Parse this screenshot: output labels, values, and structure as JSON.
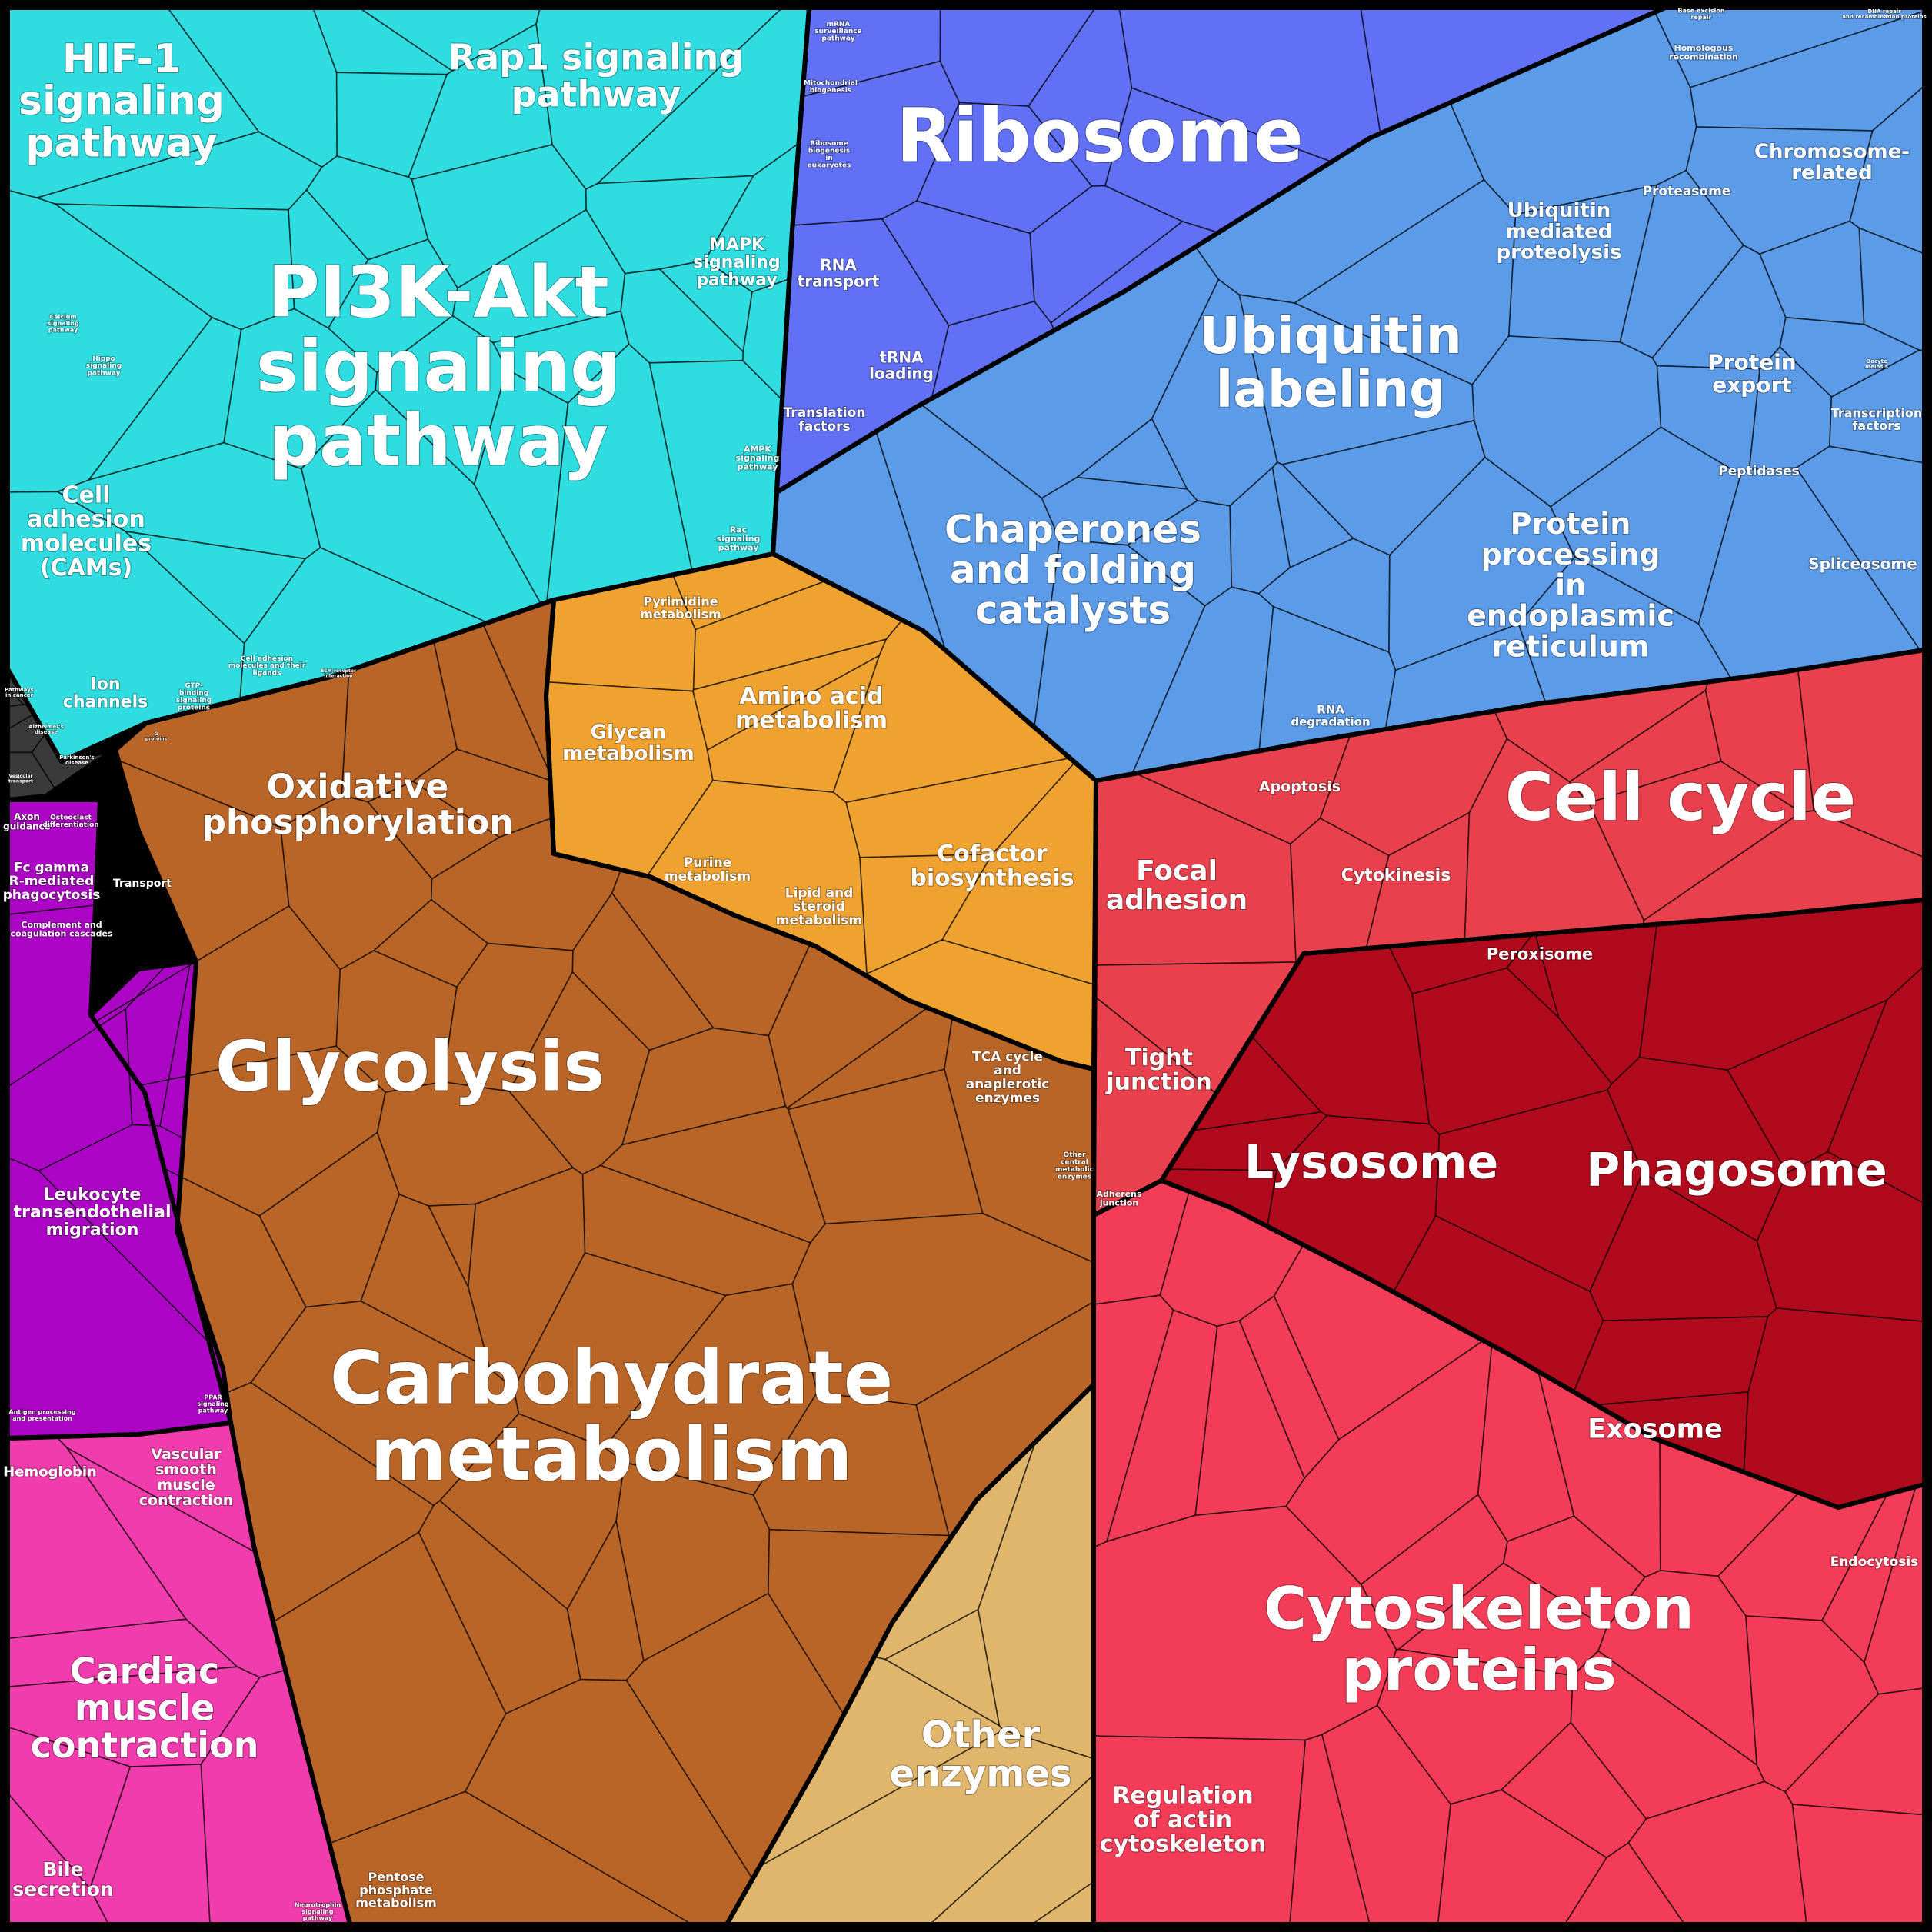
{
  "diagram": {
    "categories": [
      {
        "key": "signaling",
        "color": "#2fdde0",
        "subcolors": [
          "#2ee6ea",
          "#14c4cc",
          "#21d2d6",
          "#4fe9f2",
          "#0db3bd"
        ]
      },
      {
        "key": "ribosome",
        "color": "#6270f5",
        "subcolors": [
          "#6a78f7",
          "#5563ea",
          "#7b87fb",
          "#4755d7",
          "#7d89ff"
        ]
      },
      {
        "key": "ubiquitin",
        "color": "#5b9be8",
        "subcolors": [
          "#6aa5ee",
          "#4f8fe0",
          "#80b6f4",
          "#3f7fd6",
          "#9ac6f7"
        ]
      },
      {
        "key": "metabolism",
        "color": "#f0a230",
        "subcolors": [
          "#f5a93a",
          "#e38f1e",
          "#ffc640",
          "#f7b84a",
          "#d68614"
        ]
      },
      {
        "key": "carb",
        "color": "#b96528",
        "subcolors": [
          "#a5531a",
          "#c77630",
          "#9c4e10",
          "#b36a34",
          "#8f4510"
        ]
      },
      {
        "key": "other_enz",
        "color": "#e0b56c",
        "subcolors": [
          "#e8c17a",
          "#d4a85e",
          "#c99a54",
          "#f0c978"
        ]
      },
      {
        "key": "cell_cycle",
        "color": "#e8404c",
        "subcolors": [
          "#ee4654",
          "#d93040",
          "#f26060",
          "#e02a3e"
        ]
      },
      {
        "key": "lysosome",
        "color": "#b00a1c",
        "subcolors": [
          "#a40012",
          "#c21428",
          "#990010",
          "#b8162a"
        ]
      },
      {
        "key": "cytoskeleton",
        "color": "#f23c58",
        "subcolors": [
          "#f53a58",
          "#e42d4d",
          "#f85674",
          "#d62846"
        ]
      },
      {
        "key": "immune",
        "color": "#ad05c5",
        "subcolors": [
          "#b20ecb",
          "#9f00b8",
          "#c21edb"
        ]
      },
      {
        "key": "cardiac",
        "color": "#f03cac",
        "subcolors": [
          "#f5449e",
          "#e8339c",
          "#ff5bbd",
          "#d42c90"
        ]
      },
      {
        "key": "disease",
        "color": "#3a3a3a",
        "subcolors": [
          "#2d2d2d",
          "#444444",
          "#333333"
        ]
      }
    ],
    "labels": [
      {
        "name": "hif1",
        "lines": [
          "HIF-1",
          "signaling",
          "pathway"
        ]
      },
      {
        "name": "rap1",
        "lines": [
          "Rap1 signaling",
          "pathway"
        ]
      },
      {
        "name": "pi3k",
        "lines": [
          "PI3K-Akt",
          "signaling",
          "pathway"
        ]
      },
      {
        "name": "mapk",
        "lines": [
          "MAPK",
          "signaling",
          "pathway"
        ]
      },
      {
        "name": "cams",
        "lines": [
          "Cell",
          "adhesion",
          "molecules",
          "(CAMs)"
        ]
      },
      {
        "name": "ion-channels",
        "lines": [
          "Ion",
          "channels"
        ]
      },
      {
        "name": "ampk",
        "lines": [
          "AMPK",
          "signaling",
          "pathway"
        ]
      },
      {
        "name": "rac",
        "lines": [
          "Rac",
          "signaling",
          "pathway"
        ]
      },
      {
        "name": "cell-adhesion-ligands",
        "lines": [
          "Cell adhesion",
          "molecules and their",
          "ligands"
        ]
      },
      {
        "name": "gtp-binding",
        "lines": [
          "GTP-",
          "binding",
          "signaling",
          "proteins"
        ]
      },
      {
        "name": "hippo",
        "lines": [
          "Hippo",
          "signaling",
          "pathway"
        ]
      },
      {
        "name": "calcium",
        "lines": [
          "Calcium",
          "signaling",
          "pathway"
        ]
      },
      {
        "name": "ribosome",
        "lines": [
          "Ribosome"
        ]
      },
      {
        "name": "mrna-surveillance",
        "lines": [
          "mRNA",
          "surveillance",
          "pathway"
        ]
      },
      {
        "name": "mito-biogenesis",
        "lines": [
          "Mitochondrial",
          "biogenesis"
        ]
      },
      {
        "name": "ribosome-biogenesis",
        "lines": [
          "Ribosome",
          "biogenesis",
          "in",
          "eukaryotes"
        ]
      },
      {
        "name": "rna-transport",
        "lines": [
          "RNA",
          "transport"
        ]
      },
      {
        "name": "trna-loading",
        "lines": [
          "tRNA",
          "loading"
        ]
      },
      {
        "name": "translation-factors",
        "lines": [
          "Translation",
          "factors"
        ]
      },
      {
        "name": "ubiquitin-labeling",
        "lines": [
          "Ubiquitin",
          "labeling"
        ]
      },
      {
        "name": "ubiquitin-proteolysis",
        "lines": [
          "Ubiquitin",
          "mediated",
          "proteolysis"
        ]
      },
      {
        "name": "chromosome",
        "lines": [
          "Chromosome-",
          "related"
        ]
      },
      {
        "name": "proteasome",
        "lines": [
          "Proteasome"
        ]
      },
      {
        "name": "protein-export",
        "lines": [
          "Protein",
          "export"
        ]
      },
      {
        "name": "peptidases",
        "lines": [
          "Peptidases"
        ]
      },
      {
        "name": "transcription-factors",
        "lines": [
          "Transcription",
          "factors"
        ]
      },
      {
        "name": "spliceosome",
        "lines": [
          "Spliceosome"
        ]
      },
      {
        "name": "chaperones",
        "lines": [
          "Chaperones",
          "and folding",
          "catalysts"
        ]
      },
      {
        "name": "protein-processing",
        "lines": [
          "Protein",
          "processing",
          "in",
          "endoplasmic",
          "reticulum"
        ]
      },
      {
        "name": "rna-degradation",
        "lines": [
          "RNA",
          "degradation"
        ]
      },
      {
        "name": "base-excision",
        "lines": [
          "Base excision",
          "repair"
        ]
      },
      {
        "name": "dna-replication",
        "lines": [
          "DNA repair",
          "and recombination proteins"
        ]
      },
      {
        "name": "homologous",
        "lines": [
          "Homologous",
          "recombination"
        ]
      },
      {
        "name": "pyrimidine",
        "lines": [
          "Pyrimidine",
          "metabolism"
        ]
      },
      {
        "name": "amino-acid",
        "lines": [
          "Amino acid",
          "metabolism"
        ]
      },
      {
        "name": "glycan",
        "lines": [
          "Glycan",
          "metabolism"
        ]
      },
      {
        "name": "oxphos",
        "lines": [
          "Oxidative",
          "phosphorylation"
        ]
      },
      {
        "name": "cofactor",
        "lines": [
          "Cofactor",
          "biosynthesis"
        ]
      },
      {
        "name": "purine",
        "lines": [
          "Purine",
          "metabolism"
        ]
      },
      {
        "name": "lipid",
        "lines": [
          "Lipid and",
          "steroid",
          "metabolism"
        ]
      },
      {
        "name": "transport",
        "lines": [
          "Transport"
        ]
      },
      {
        "name": "glycolysis",
        "lines": [
          "Glycolysis"
        ]
      },
      {
        "name": "tca",
        "lines": [
          "TCA cycle",
          "and",
          "anaplerotic",
          "enzymes"
        ]
      },
      {
        "name": "other-central",
        "lines": [
          "Other",
          "central",
          "metabolic",
          "enzymes"
        ]
      },
      {
        "name": "carbohydrate",
        "lines": [
          "Carbohydrate",
          "metabolism"
        ]
      },
      {
        "name": "other-enzymes",
        "lines": [
          "Other",
          "enzymes"
        ]
      },
      {
        "name": "pentose",
        "lines": [
          "Pentose",
          "phosphate",
          "metabolism"
        ]
      },
      {
        "name": "cell-cycle",
        "lines": [
          "Cell cycle"
        ]
      },
      {
        "name": "apoptosis",
        "lines": [
          "Apoptosis"
        ]
      },
      {
        "name": "cytokinesis",
        "lines": [
          "Cytokinesis"
        ]
      },
      {
        "name": "focal-adhesion",
        "lines": [
          "Focal",
          "adhesion"
        ]
      },
      {
        "name": "tight-junction",
        "lines": [
          "Tight",
          "junction"
        ]
      },
      {
        "name": "adherens",
        "lines": [
          "Adherens",
          "junction"
        ]
      },
      {
        "name": "peroxisome",
        "lines": [
          "Peroxisome"
        ]
      },
      {
        "name": "lysosome",
        "lines": [
          "Lysosome"
        ]
      },
      {
        "name": "phagosome",
        "lines": [
          "Phagosome"
        ]
      },
      {
        "name": "exosome",
        "lines": [
          "Exosome"
        ]
      },
      {
        "name": "endocytosis",
        "lines": [
          "Endocytosis"
        ]
      },
      {
        "name": "cytoskeleton",
        "lines": [
          "Cytoskeleton",
          "proteins"
        ]
      },
      {
        "name": "actin",
        "lines": [
          "Regulation",
          "of actin",
          "cytoskeleton"
        ]
      },
      {
        "name": "axon",
        "lines": [
          "Axon",
          "guidance"
        ]
      },
      {
        "name": "osteoclast",
        "lines": [
          "Osteoclast",
          "differentiation"
        ]
      },
      {
        "name": "fc-gamma",
        "lines": [
          "Fc gamma",
          "R-mediated",
          "phagocytosis"
        ]
      },
      {
        "name": "complement",
        "lines": [
          "Complement and",
          "coagulation cascades"
        ]
      },
      {
        "name": "leukocyte",
        "lines": [
          "Leukocyte",
          "transendothelial",
          "migration"
        ]
      },
      {
        "name": "antigen",
        "lines": [
          "Antigen processing",
          "and presentation"
        ]
      },
      {
        "name": "ppar",
        "lines": [
          "PPAR",
          "signaling",
          "pathway"
        ]
      },
      {
        "name": "hemoglobin",
        "lines": [
          "Hemoglobin"
        ]
      },
      {
        "name": "vascular",
        "lines": [
          "Vascular",
          "smooth",
          "muscle",
          "contraction"
        ]
      },
      {
        "name": "cardiac",
        "lines": [
          "Cardiac",
          "muscle",
          "contraction"
        ]
      },
      {
        "name": "bile",
        "lines": [
          "Bile",
          "secretion"
        ]
      },
      {
        "name": "neurotrophin",
        "lines": [
          "Neurotrophin",
          "signaling",
          "pathway"
        ]
      },
      {
        "name": "pathways-cancer",
        "lines": [
          "Pathways",
          "in cancer"
        ]
      },
      {
        "name": "alzheimers",
        "lines": [
          "Alzheimer's",
          "disease"
        ]
      },
      {
        "name": "parkinsons",
        "lines": [
          "Parkinson's",
          "disease"
        ]
      },
      {
        "name": "vesicular",
        "lines": [
          "Vesicular",
          "transport"
        ]
      },
      {
        "name": "ecm",
        "lines": [
          "ECM-receptor",
          "interaction"
        ]
      },
      {
        "name": "g-proteins",
        "lines": [
          "G",
          "proteins"
        ]
      },
      {
        "name": "oocyte",
        "lines": [
          "Oocyte",
          "meiosis"
        ]
      }
    ]
  }
}
